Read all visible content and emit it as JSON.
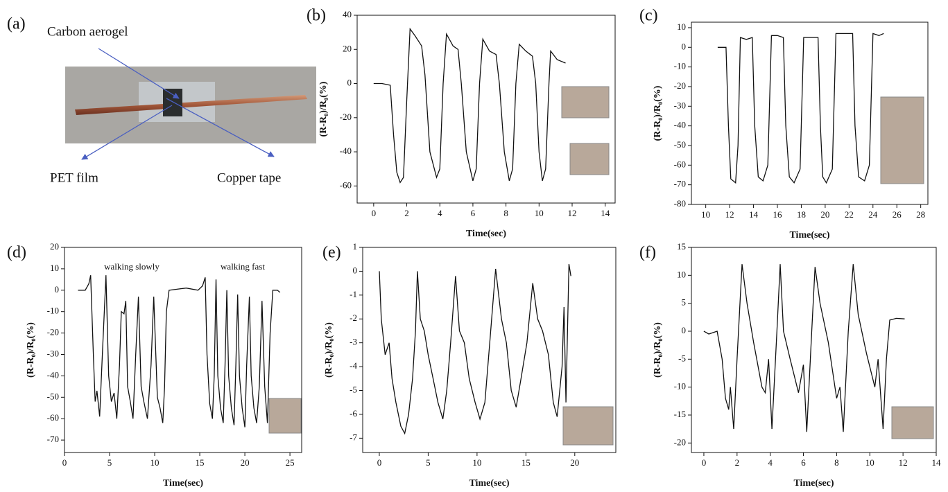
{
  "photo": {
    "panel_label": "(a)",
    "labels": [
      "Carbon aerogel",
      "PET film",
      "Copper tape"
    ]
  },
  "chart_data": [
    {
      "type": "line",
      "panel_label": "(b)",
      "xlabel": "Time(sec)",
      "ylabel": "(R-R₀)/R₀(%)",
      "color": "#111111",
      "xlim": [
        -1,
        14.6
      ],
      "ylim": [
        -70,
        40
      ],
      "xticks": [
        0,
        2,
        4,
        6,
        8,
        10,
        12,
        14
      ],
      "yticks": [
        -60,
        -40,
        -20,
        0,
        20,
        40
      ],
      "x": [
        0,
        0.5,
        1.0,
        1.2,
        1.4,
        1.6,
        1.8,
        2.0,
        2.2,
        2.5,
        2.9,
        3.1,
        3.4,
        3.8,
        4.0,
        4.2,
        4.4,
        4.8,
        5.1,
        5.3,
        5.6,
        6.0,
        6.2,
        6.4,
        6.6,
        7.0,
        7.4,
        7.6,
        7.9,
        8.2,
        8.4,
        8.6,
        8.8,
        9.2,
        9.6,
        9.8,
        10.0,
        10.2,
        10.4,
        10.6,
        10.7,
        11.1,
        11.6
      ],
      "values": [
        0,
        0,
        -1,
        -30,
        -52,
        -58,
        -55,
        -10,
        32,
        28,
        22,
        5,
        -40,
        -55,
        -50,
        0,
        29,
        22,
        20,
        0,
        -40,
        -57,
        -50,
        0,
        26,
        19,
        17,
        0,
        -40,
        -57,
        -50,
        0,
        23,
        19,
        16,
        0,
        -40,
        -57,
        -50,
        0,
        19,
        14,
        12
      ]
    },
    {
      "type": "line",
      "panel_label": "(c)",
      "xlabel": "Time(sec)",
      "ylabel": "(R-R₀)/R₀(%)",
      "color": "#111111",
      "xlim": [
        8.8,
        28.6
      ],
      "ylim": [
        -80,
        12.8
      ],
      "xticks": [
        10,
        12,
        14,
        16,
        18,
        20,
        22,
        24,
        26,
        28
      ],
      "yticks": [
        -80,
        -70,
        -60,
        -50,
        -40,
        -30,
        -20,
        -10,
        0,
        10
      ],
      "x": [
        11.0,
        11.7,
        11.9,
        12.1,
        12.5,
        12.7,
        12.9,
        13.4,
        13.9,
        14.1,
        14.4,
        14.8,
        15.2,
        15.5,
        16.0,
        16.5,
        16.7,
        17.0,
        17.4,
        17.9,
        18.2,
        18.8,
        19.4,
        19.6,
        19.8,
        20.1,
        20.6,
        20.9,
        21.6,
        22.3,
        22.5,
        22.8,
        23.3,
        23.7,
        24.0,
        24.5,
        24.9
      ],
      "values": [
        0,
        0,
        -40,
        -67,
        -69,
        -50,
        5,
        4,
        5,
        -40,
        -66,
        -68,
        -60,
        6,
        6,
        5,
        -40,
        -66,
        -69,
        -62,
        5,
        5,
        5,
        -40,
        -66,
        -69,
        -62,
        7,
        7,
        7,
        -40,
        -66,
        -68,
        -60,
        7,
        6,
        7
      ]
    },
    {
      "type": "line",
      "panel_label": "(d)",
      "xlabel": "Time(sec)",
      "ylabel": "(R-R₀)/R₀(%)",
      "color": "#111111",
      "annotations": [
        "walking slowly",
        "walking fast"
      ],
      "xlim": [
        0,
        26.3
      ],
      "ylim": [
        -75.8,
        20
      ],
      "xticks": [
        0,
        5,
        10,
        15,
        20,
        25
      ],
      "yticks": [
        -70,
        -60,
        -50,
        -40,
        -30,
        -20,
        -10,
        0,
        10,
        20
      ],
      "x": [
        1.5,
        2.3,
        2.7,
        2.9,
        3.2,
        3.4,
        3.6,
        3.9,
        4.2,
        4.6,
        4.9,
        5.2,
        5.5,
        5.8,
        6.1,
        6.3,
        6.6,
        6.8,
        7.0,
        7.3,
        7.6,
        7.9,
        8.2,
        8.5,
        8.8,
        9.2,
        9.6,
        9.9,
        10.3,
        10.6,
        10.9,
        11.1,
        11.3,
        11.6,
        13.5,
        14.8,
        15.3,
        15.6,
        15.8,
        16.1,
        16.4,
        16.6,
        16.8,
        17.0,
        17.3,
        17.6,
        17.8,
        18.0,
        18.2,
        18.5,
        18.8,
        19.0,
        19.2,
        19.4,
        19.7,
        20.0,
        20.2,
        20.5,
        20.7,
        21.0,
        21.3,
        21.6,
        21.9,
        22.2,
        22.5,
        22.8,
        23.1,
        23.6,
        23.9
      ],
      "values": [
        0,
        0,
        3,
        7,
        -30,
        -52,
        -47,
        -59,
        -30,
        7,
        -40,
        -52,
        -48,
        -60,
        -35,
        -10,
        -11,
        -5,
        -45,
        -52,
        -60,
        -30,
        -3,
        -45,
        -52,
        -60,
        -35,
        -3,
        -50,
        -55,
        -62,
        -45,
        -10,
        0,
        1,
        0,
        2,
        6,
        -30,
        -53,
        -60,
        -40,
        5,
        -40,
        -55,
        -62,
        -35,
        0,
        -40,
        -55,
        -63,
        -35,
        -2,
        -40,
        -55,
        -64,
        -35,
        -3,
        -40,
        -55,
        -62,
        -45,
        -5,
        -45,
        -62,
        -20,
        0,
        0,
        -1
      ]
    },
    {
      "type": "line",
      "panel_label": "(e)",
      "xlabel": "Time(sec)",
      "ylabel": "(R-R₀)/R₀(%)",
      "color": "#111111",
      "xlim": [
        -1.7,
        24.2
      ],
      "ylim": [
        -7.6,
        1
      ],
      "xticks": [
        0,
        5,
        10,
        15,
        20
      ],
      "yticks": [
        -7,
        -6,
        -5,
        -4,
        -3,
        -2,
        -1,
        0,
        1
      ],
      "x": [
        0,
        0.2,
        0.6,
        1.0,
        1.3,
        1.7,
        2.2,
        2.6,
        3.0,
        3.4,
        3.7,
        3.9,
        4.2,
        4.6,
        5.0,
        5.5,
        6.0,
        6.5,
        6.9,
        7.3,
        7.8,
        8.2,
        8.7,
        9.2,
        9.8,
        10.3,
        10.8,
        11.3,
        11.9,
        12.5,
        13.0,
        13.5,
        14.0,
        14.5,
        15.1,
        15.7,
        16.2,
        16.7,
        17.3,
        17.8,
        18.2,
        18.7,
        18.9,
        19.1,
        19.4,
        19.6
      ],
      "values": [
        0,
        -2,
        -3.5,
        -3,
        -4.5,
        -5.5,
        -6.5,
        -6.8,
        -6,
        -4.5,
        -2.5,
        0,
        -2,
        -2.5,
        -3.5,
        -4.5,
        -5.5,
        -6.2,
        -5,
        -3,
        -0.2,
        -2.5,
        -3,
        -4.5,
        -5.5,
        -6.2,
        -5.5,
        -3,
        0.1,
        -2,
        -3,
        -5,
        -5.7,
        -4.5,
        -3,
        -0.5,
        -2,
        -2.5,
        -3.5,
        -5.5,
        -6.1,
        -4,
        -1.5,
        -5.5,
        0.3,
        -0.2
      ]
    },
    {
      "type": "line",
      "panel_label": "(f)",
      "xlabel": "Time(sec)",
      "ylabel": "(R-R₀)/R₀(%)",
      "color": "#111111",
      "xlim": [
        -0.75,
        14
      ],
      "ylim": [
        -21.7,
        15
      ],
      "xticks": [
        0,
        2,
        4,
        6,
        8,
        10,
        12,
        14
      ],
      "yticks": [
        -20,
        -15,
        -10,
        -5,
        0,
        5,
        10,
        15
      ],
      "x": [
        0,
        0.3,
        0.8,
        1.1,
        1.3,
        1.5,
        1.6,
        1.8,
        2.0,
        2.3,
        2.6,
        3.0,
        3.5,
        3.7,
        3.9,
        4.1,
        4.4,
        4.6,
        4.8,
        5.2,
        5.7,
        6.0,
        6.2,
        6.5,
        6.7,
        7.0,
        7.5,
        8.0,
        8.2,
        8.4,
        8.7,
        9.0,
        9.3,
        9.8,
        10.3,
        10.5,
        10.8,
        11.0,
        11.2,
        11.6,
        12.1
      ],
      "values": [
        0,
        -0.5,
        0,
        -5,
        -12,
        -14,
        -10,
        -17.5,
        -5,
        12,
        5,
        -2,
        -10,
        -11,
        -5,
        -17.5,
        0,
        12,
        0,
        -5,
        -11,
        -6,
        -18,
        0,
        11.5,
        5,
        -2,
        -12,
        -10,
        -18,
        0,
        12,
        3,
        -4,
        -10,
        -5,
        -17.5,
        -5,
        2,
        2.3,
        2.2
      ]
    }
  ]
}
